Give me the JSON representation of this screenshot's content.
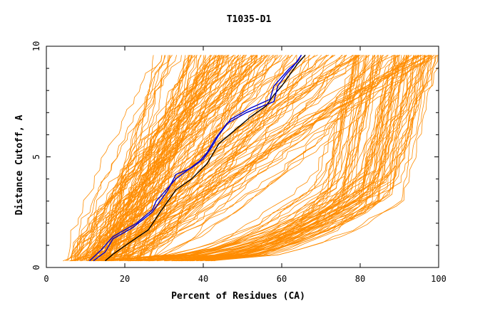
{
  "chart_data": {
    "type": "line",
    "title": "T1035-D1",
    "xlabel": "Percent of Residues (CA)",
    "ylabel": "Distance Cutoff, A",
    "xlim": [
      0,
      100
    ],
    "ylim": [
      0,
      10
    ],
    "x_ticks": [
      "0",
      "20",
      "40",
      "60",
      "80",
      "100"
    ],
    "y_ticks": [
      "0",
      "5",
      "10"
    ],
    "grid": false,
    "legend": "none",
    "colors": {
      "models": "#ff8c00",
      "highlight_blue": "#0000cc",
      "highlight_black": "#000000"
    },
    "highlight_series": [
      {
        "color": "#000000",
        "x": [
          15,
          17,
          21,
          26,
          29,
          31,
          33,
          37,
          41,
          44,
          48,
          52,
          56,
          58,
          60,
          62,
          64,
          66
        ],
        "y": [
          0.3,
          0.6,
          1.1,
          1.7,
          2.5,
          3.0,
          3.5,
          4.0,
          4.7,
          5.6,
          6.2,
          6.8,
          7.3,
          7.8,
          8.2,
          8.7,
          9.2,
          9.6
        ]
      },
      {
        "color": "#0000cc",
        "x": [
          12,
          15,
          17,
          22,
          27,
          29,
          31,
          33,
          37,
          40,
          42,
          44,
          47,
          52,
          57,
          58,
          60,
          62,
          64,
          65
        ],
        "y": [
          0.3,
          0.7,
          1.3,
          1.8,
          2.5,
          3.0,
          3.5,
          4.2,
          4.5,
          4.9,
          5.4,
          6.0,
          6.7,
          7.2,
          7.6,
          8.2,
          8.6,
          9.0,
          9.3,
          9.6
        ]
      },
      {
        "color": "#0000cc",
        "x": [
          11,
          14,
          17,
          23,
          27,
          28,
          30,
          33,
          36,
          39,
          41,
          43,
          46,
          51,
          58,
          59,
          61,
          63,
          65
        ],
        "y": [
          0.3,
          0.8,
          1.4,
          2.0,
          2.6,
          3.0,
          3.4,
          4.0,
          4.4,
          4.8,
          5.2,
          5.8,
          6.5,
          7.0,
          7.5,
          8.2,
          8.7,
          9.1,
          9.6
        ]
      }
    ]
  }
}
